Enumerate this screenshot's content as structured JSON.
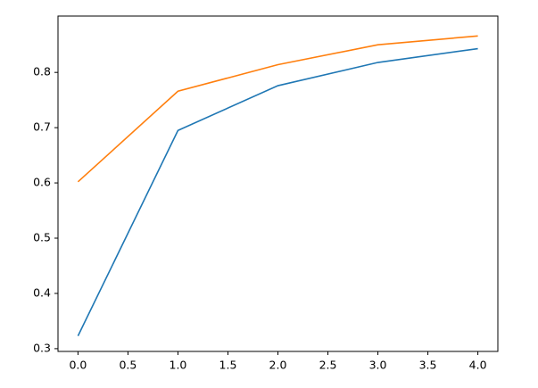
{
  "chart_data": {
    "type": "line",
    "x": [
      0,
      1,
      2,
      3,
      4
    ],
    "series": [
      {
        "color": "#1f77b4",
        "values": [
          0.323,
          0.695,
          0.776,
          0.818,
          0.843
        ]
      },
      {
        "color": "#ff7f0e",
        "values": [
          0.602,
          0.766,
          0.814,
          0.85,
          0.866
        ]
      }
    ],
    "xlim": [
      -0.2,
      4.2
    ],
    "ylim": [
      0.295,
      0.902
    ],
    "xticks": [
      {
        "value": 0,
        "label": "0.0"
      },
      {
        "value": 0.5,
        "label": "0.5"
      },
      {
        "value": 1,
        "label": "1.0"
      },
      {
        "value": 1.5,
        "label": "1.5"
      },
      {
        "value": 2,
        "label": "2.0"
      },
      {
        "value": 2.5,
        "label": "2.5"
      },
      {
        "value": 3,
        "label": "3.0"
      },
      {
        "value": 3.5,
        "label": "3.5"
      },
      {
        "value": 4,
        "label": "4.0"
      }
    ],
    "yticks": [
      0.3,
      0.4,
      0.5,
      0.6,
      0.7,
      0.8
    ],
    "grid": false
  }
}
